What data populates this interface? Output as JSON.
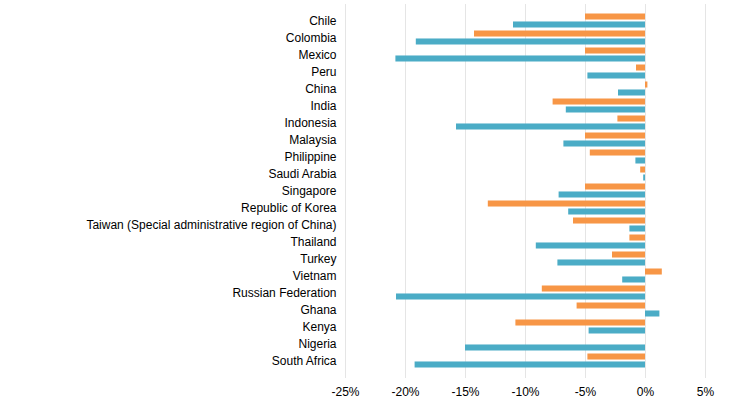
{
  "chart_data": {
    "type": "bar",
    "orientation": "horizontal",
    "grid": true,
    "categories": [
      "Chile",
      "Colombia",
      "Mexico",
      "Peru",
      "China",
      "India",
      "Indonesia",
      "Malaysia",
      "Philippine",
      "Saudi Arabia",
      "Singapore",
      "Republic of Korea",
      "Taiwan (Special administrative region of China)",
      "Thailand",
      "Turkey",
      "Vietnam",
      "Russian Federation",
      "Ghana",
      "Kenya",
      "Nigeria",
      "South Africa"
    ],
    "series": [
      {
        "color": "#f79646",
        "values": [
          -5.0,
          -14.25,
          -5.0,
          -0.75,
          0.2,
          -7.7,
          -2.3,
          -5.0,
          -4.6,
          -0.4,
          -5.0,
          -13.1,
          -6.0,
          -1.3,
          -2.75,
          1.4,
          -8.6,
          -5.7,
          -10.8,
          null,
          -4.8
        ]
      },
      {
        "color": "#4bacc6",
        "values": [
          -11.0,
          -19.1,
          -20.8,
          -4.8,
          -2.25,
          -6.6,
          -15.75,
          -6.8,
          -0.8,
          -0.15,
          -7.2,
          -6.4,
          -1.3,
          -9.1,
          -7.3,
          -1.9,
          -20.75,
          1.2,
          -4.7,
          -15.0,
          -19.2
        ]
      }
    ],
    "xlim": [
      -25,
      5
    ],
    "xticks": [
      {
        "value": -25,
        "label": "-25%"
      },
      {
        "value": -20,
        "label": "-20%"
      },
      {
        "value": -15,
        "label": "-15%"
      },
      {
        "value": -10,
        "label": "-10%"
      },
      {
        "value": -5,
        "label": "-5%"
      },
      {
        "value": 0,
        "label": "0%"
      },
      {
        "value": 5,
        "label": "5%"
      }
    ]
  }
}
